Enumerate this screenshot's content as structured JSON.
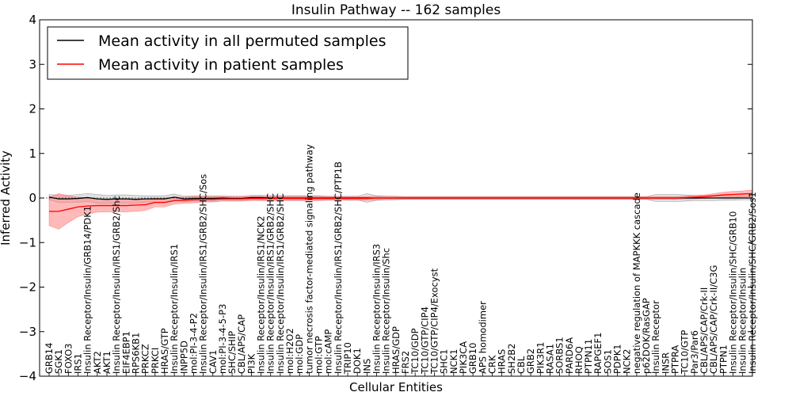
{
  "chart_data": {
    "type": "line",
    "title": "Insulin Pathway -- 162 samples",
    "xlabel": "Cellular Entities",
    "ylabel": "Inferred Activity",
    "ylim": [
      -4,
      4
    ],
    "yticks": [
      -4,
      -3,
      -2,
      -1,
      0,
      1,
      2,
      3,
      4
    ],
    "ytick_labels": [
      "−4",
      "−3",
      "−2",
      "−1",
      "0",
      "1",
      "2",
      "3",
      "4"
    ],
    "legend_position": "top-left",
    "categories": [
      "GRB14",
      "SGK1",
      "FOXO3",
      "IRS1",
      "Insulin Receptor/Insulin/GRB14/PDK1",
      "AKT2",
      "AKT1",
      "Insulin Receptor/Insulin/IRS1/GRB2/Shc",
      "EIF4EBP1",
      "RPS6KB1",
      "PRKCZ",
      "PRKCI",
      "HRAS/GTP",
      "Insulin Receptor/Insulin/IRS1",
      "INPP5D",
      "mol:PI-3-4-P2",
      "Insulin Receptor/Insulin/IRS1/GRB2/SHC/Sos",
      "CAV1",
      "mol:PI-3-4-5-P3",
      "SHC/SHIP",
      "CBL/APS/CAP",
      "PI3K",
      "Insulin Receptor/Insulin/IRS1/NCK2",
      "Insulin Receptor/Insulin/IRS1/GRB2/SHC",
      "Insulin Receptor/Insulin/IRS1/GRB2/SHC",
      "mol:H2O2",
      "mol:GDP",
      "tumor necrosis factor-mediated signaling pathway",
      "mol:GTP",
      "mol:cAMP",
      "Insulin Receptor/Insulin/IRS1/GRB2/SHC/PTP1B",
      "TRIP10",
      "DOK1",
      "INS",
      "Insulin Receptor/Insulin/IRS3",
      "Insulin Receptor/Insulin/Shc",
      "HRAS/GDP",
      "FRS2",
      "TC10/GDP",
      "TC10/GTP/CIP4",
      "TC10/GTP/CIP4/Exocyst",
      "SHC1",
      "NCK1",
      "PIK3CA",
      "GRB10",
      "APS homodimer",
      "CRK",
      "HRAS",
      "SH2B2",
      "CBL",
      "GRB2",
      "PIK3R1",
      "RASA1",
      "SORBS1",
      "PARD6A",
      "RHOQ",
      "PTPN11",
      "RAPGEF1",
      "SOS1",
      "PDPK1",
      "NCK2",
      "negative regulation of MAPKKK cascade",
      "p62DOK/RasGAP",
      "Insulin Receptor",
      "INSR",
      "PTPRA",
      "TC10/GTP",
      "Par3/Par6",
      "CBL/APS/CAP/Crk-II",
      "CBL/APS/CAP/Crk-II/C3G",
      "PTPN1",
      "Insulin Receptor/Insulin/SHC/GRB10",
      "Insulin Receptor/Insulin",
      "Insulin Receptor/Insulin/SHC/GRB2/Sos1"
    ],
    "series": [
      {
        "name": "Mean activity in all permuted samples",
        "color": "#000000",
        "band_color": "#c8c8c8",
        "values": [
          0.02,
          -0.02,
          -0.02,
          -0.01,
          0.01,
          -0.02,
          -0.03,
          -0.02,
          -0.02,
          -0.03,
          -0.02,
          -0.02,
          -0.02,
          0.02,
          -0.02,
          -0.01,
          -0.01,
          -0.01,
          0.0,
          -0.01,
          -0.01,
          0.01,
          0.01,
          0.0,
          0.0,
          0.0,
          0.0,
          0.0,
          0.0,
          0.0,
          0.0,
          0.0,
          0.0,
          0.0,
          0.0,
          0.0,
          0.0,
          0.0,
          0.0,
          0.0,
          0.0,
          0.0,
          0.0,
          0.0,
          0.0,
          0.0,
          0.0,
          0.0,
          0.0,
          0.0,
          0.0,
          0.0,
          0.0,
          0.0,
          0.0,
          0.0,
          0.0,
          0.0,
          0.0,
          0.0,
          0.0,
          0.0,
          0.0,
          0.0,
          0.0,
          0.0,
          0.0,
          0.0,
          0.0,
          0.0,
          0.0,
          0.0,
          0.0,
          0.0
        ],
        "spread": [
          0.06,
          0.08,
          0.08,
          0.09,
          0.09,
          0.1,
          0.09,
          0.09,
          0.09,
          0.09,
          0.07,
          0.07,
          0.07,
          0.07,
          0.06,
          0.06,
          0.06,
          0.06,
          0.05,
          0.05,
          0.05,
          0.05,
          0.05,
          0.05,
          0.05,
          0.05,
          0.05,
          0.05,
          0.05,
          0.04,
          0.04,
          0.04,
          0.04,
          0.1,
          0.05,
          0.04,
          0.04,
          0.03,
          0.03,
          0.03,
          0.03,
          0.03,
          0.03,
          0.03,
          0.03,
          0.03,
          0.03,
          0.03,
          0.03,
          0.03,
          0.03,
          0.03,
          0.03,
          0.03,
          0.03,
          0.03,
          0.03,
          0.03,
          0.03,
          0.03,
          0.03,
          0.03,
          0.03,
          0.08,
          0.08,
          0.08,
          0.07,
          0.06,
          0.06,
          0.06,
          0.05,
          0.05,
          0.04,
          0.04
        ]
      },
      {
        "name": "Mean activity in patient samples",
        "color": "#ff0000",
        "band_color": "#ff8080",
        "values": [
          -0.3,
          -0.3,
          -0.25,
          -0.2,
          -0.18,
          -0.17,
          -0.17,
          -0.17,
          -0.17,
          -0.16,
          -0.15,
          -0.1,
          -0.1,
          -0.06,
          -0.05,
          -0.04,
          -0.03,
          -0.03,
          -0.02,
          -0.02,
          -0.02,
          -0.01,
          -0.01,
          -0.01,
          -0.01,
          -0.01,
          -0.01,
          -0.01,
          -0.01,
          -0.01,
          -0.01,
          -0.01,
          -0.01,
          -0.01,
          0.0,
          0.0,
          0.0,
          0.0,
          0.0,
          0.0,
          0.0,
          0.0,
          0.0,
          0.0,
          0.0,
          0.0,
          0.0,
          0.0,
          0.0,
          0.0,
          0.0,
          0.0,
          0.0,
          0.0,
          0.0,
          0.0,
          0.0,
          0.0,
          0.0,
          0.0,
          0.0,
          0.0,
          0.0,
          0.0,
          0.0,
          0.0,
          0.01,
          0.02,
          0.03,
          0.05,
          0.07,
          0.08,
          0.09,
          0.1
        ],
        "spread": [
          0.32,
          0.4,
          0.3,
          0.22,
          0.18,
          0.15,
          0.14,
          0.14,
          0.14,
          0.14,
          0.13,
          0.1,
          0.1,
          0.08,
          0.07,
          0.07,
          0.06,
          0.06,
          0.05,
          0.05,
          0.05,
          0.05,
          0.05,
          0.05,
          0.05,
          0.05,
          0.05,
          0.05,
          0.05,
          0.04,
          0.04,
          0.04,
          0.04,
          0.04,
          0.04,
          0.04,
          0.03,
          0.03,
          0.03,
          0.03,
          0.03,
          0.03,
          0.03,
          0.03,
          0.03,
          0.03,
          0.03,
          0.03,
          0.03,
          0.03,
          0.03,
          0.03,
          0.03,
          0.03,
          0.03,
          0.03,
          0.03,
          0.03,
          0.03,
          0.03,
          0.03,
          0.03,
          0.03,
          0.03,
          0.03,
          0.03,
          0.03,
          0.04,
          0.04,
          0.05,
          0.06,
          0.07,
          0.07,
          0.08
        ]
      }
    ]
  }
}
